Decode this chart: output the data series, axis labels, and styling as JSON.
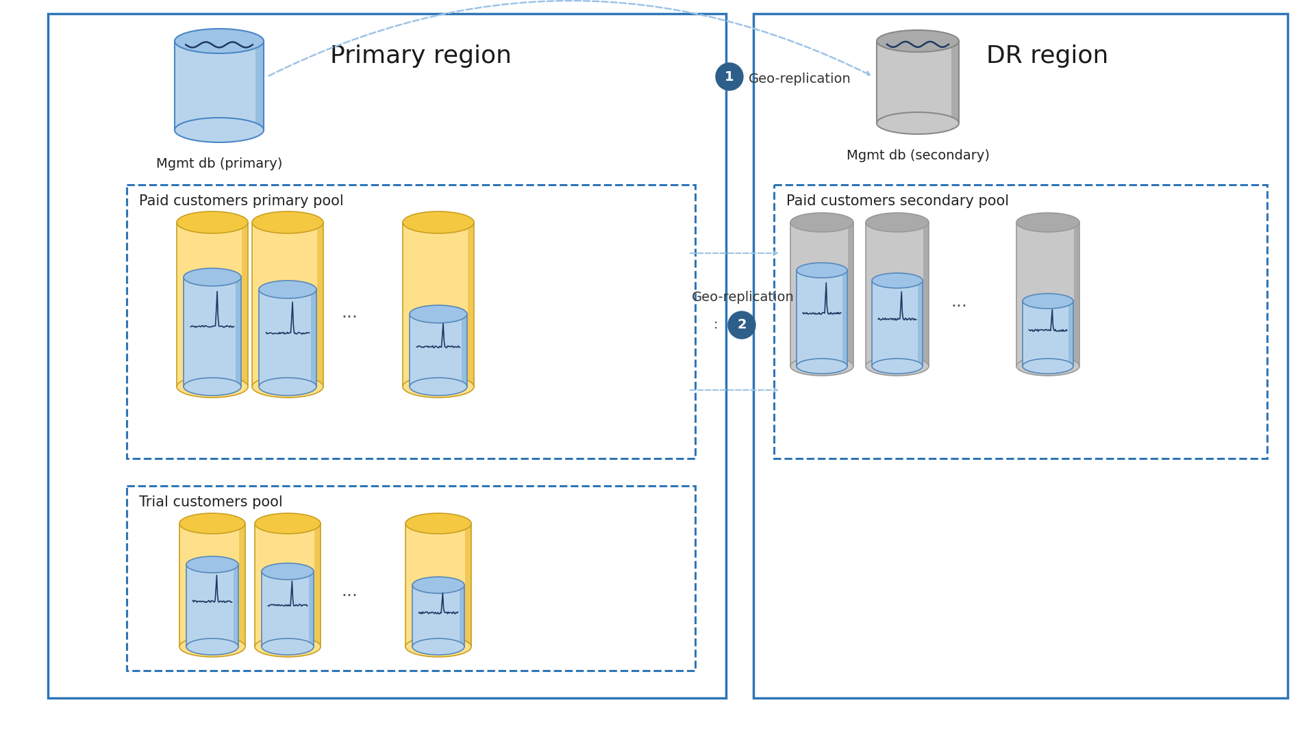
{
  "title_primary": "Primary region",
  "title_dr": "DR region",
  "label_mgmt_primary": "Mgmt db (primary)",
  "label_mgmt_secondary": "Mgmt db (secondary)",
  "label_paid_primary": "Paid customers primary pool",
  "label_paid_secondary": "Paid customers secondary pool",
  "label_trial": "Trial customers pool",
  "label_geo1": "Geo-replication",
  "label_geo2": "Geo-replication",
  "num1": "1",
  "num2": "2",
  "dots": "...",
  "color_primary_border": "#2E75B6",
  "color_dr_border": "#2E75B6",
  "color_dashed_box": "#2E75B6",
  "color_geo_line": "#9DC3E6",
  "color_circle": "#2E5F8A",
  "color_white": "#ffffff",
  "color_cyl_blue_body": "#B8D4EC",
  "color_cyl_blue_top": "#9DC3E6",
  "color_cyl_blue_side": "#7EB0D8",
  "color_cyl_yellow_body": "#FFE08A",
  "color_cyl_yellow_top": "#F5C842",
  "color_cyl_yellow_side": "#E8B830",
  "color_cyl_gray_body": "#C8C8C8",
  "color_cyl_gray_top": "#AAAAAA",
  "color_cyl_gray_side": "#999999",
  "bg_color": "#ffffff",
  "divider_color": "#2E75B6"
}
